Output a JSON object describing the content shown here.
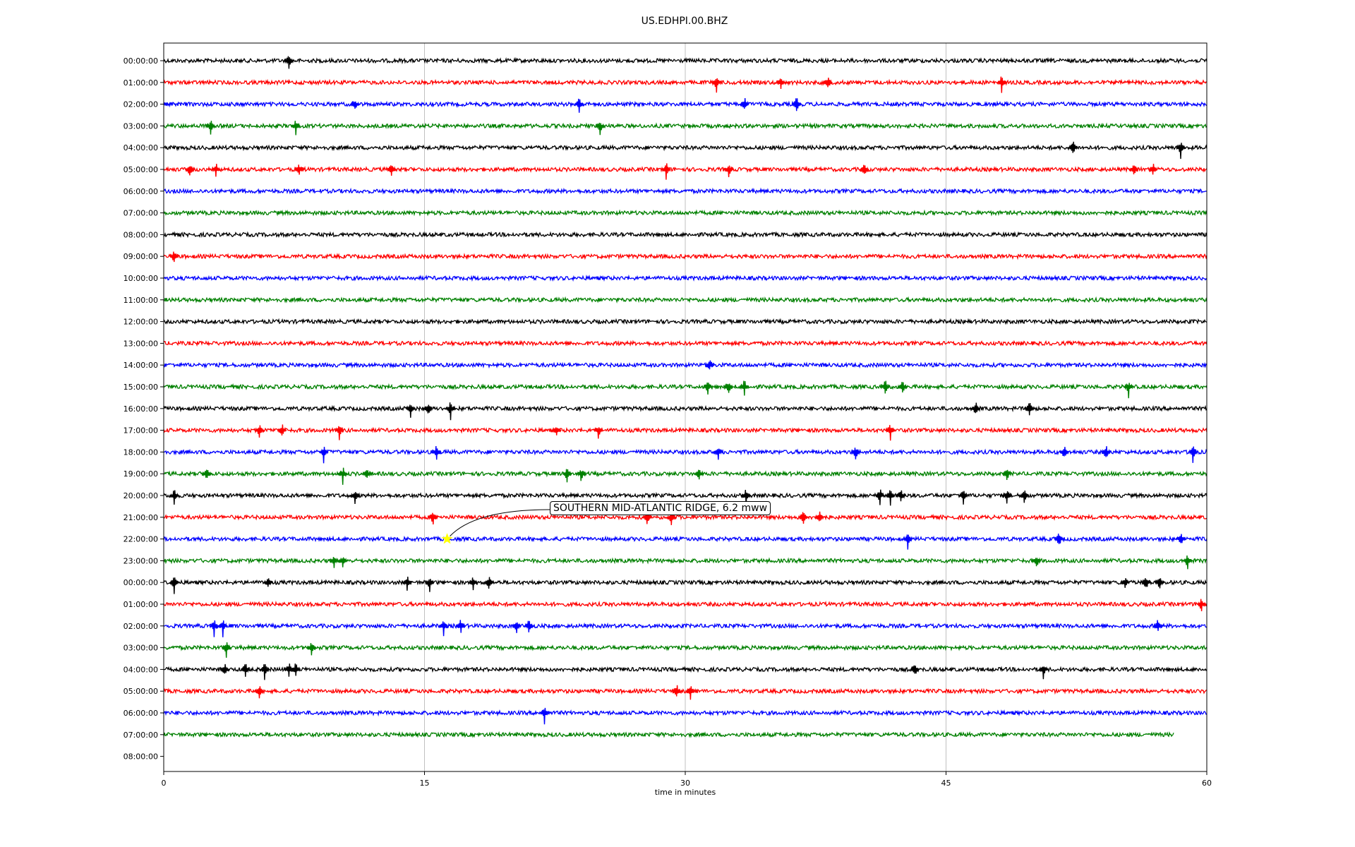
{
  "title": "US.EDHPI.00.BHZ",
  "chart_data": {
    "type": "line",
    "title": "US.EDHPI.00.BHZ",
    "xlabel": "time in minutes",
    "ylabel": "",
    "xlim": [
      0,
      60
    ],
    "x_ticks": [
      "0",
      "15",
      "30",
      "45",
      "60"
    ],
    "grid": "vertical at 15-minute ticks",
    "y_ticks": [
      "00:00:00",
      "01:00:00",
      "02:00:00",
      "03:00:00",
      "04:00:00",
      "05:00:00",
      "06:00:00",
      "07:00:00",
      "08:00:00",
      "09:00:00",
      "10:00:00",
      "11:00:00",
      "12:00:00",
      "13:00:00",
      "14:00:00",
      "15:00:00",
      "16:00:00",
      "17:00:00",
      "18:00:00",
      "19:00:00",
      "20:00:00",
      "21:00:00",
      "22:00:00",
      "23:00:00",
      "00:00:00",
      "01:00:00",
      "02:00:00",
      "03:00:00",
      "04:00:00",
      "05:00:00",
      "06:00:00",
      "07:00:00",
      "08:00:00"
    ],
    "trace_colors": [
      "#000000",
      "#ff0000",
      "#0000ff",
      "#008000"
    ],
    "trace_count": 32,
    "last_trace_end_minute": 58.1,
    "events": [
      {
        "row": 0,
        "minutes": [
          7.2
        ]
      },
      {
        "row": 1,
        "minutes": [
          31.8,
          35.5,
          38.2,
          48.2
        ]
      },
      {
        "row": 2,
        "minutes": [
          11.0,
          23.9,
          33.4,
          36.4
        ]
      },
      {
        "row": 3,
        "minutes": [
          2.7,
          7.6,
          25.1
        ]
      },
      {
        "row": 4,
        "minutes": [
          52.3,
          58.5
        ]
      },
      {
        "row": 5,
        "minutes": [
          1.5,
          3.0,
          7.8,
          13.1,
          28.9,
          32.5,
          40.3,
          55.8,
          56.9
        ]
      },
      {
        "row": 9,
        "minutes": [
          0.6
        ]
      },
      {
        "row": 14,
        "minutes": [
          31.4
        ]
      },
      {
        "row": 15,
        "minutes": [
          31.3,
          32.5,
          33.4,
          41.5,
          42.5,
          55.5
        ]
      },
      {
        "row": 16,
        "minutes": [
          14.2,
          15.2,
          16.5,
          46.7,
          49.8
        ]
      },
      {
        "row": 17,
        "minutes": [
          5.5,
          6.8,
          10.1,
          22.6,
          25.0,
          41.8
        ]
      },
      {
        "row": 18,
        "minutes": [
          9.2,
          15.7,
          31.9,
          39.8,
          51.8,
          54.2,
          59.2
        ]
      },
      {
        "row": 19,
        "minutes": [
          2.5,
          10.3,
          11.7,
          23.2,
          24.0,
          30.8,
          48.5
        ]
      },
      {
        "row": 20,
        "minutes": [
          0.6,
          11.0,
          33.5,
          41.2,
          41.8,
          42.4,
          46.0,
          48.5,
          49.5
        ]
      },
      {
        "row": 21,
        "minutes": [
          15.5,
          27.8,
          29.2,
          36.8,
          37.7
        ]
      },
      {
        "row": 22,
        "minutes": [
          42.8,
          51.5,
          58.5
        ]
      },
      {
        "row": 23,
        "minutes": [
          9.8,
          10.3,
          50.2,
          58.9
        ]
      },
      {
        "row": 24,
        "minutes": [
          0.6,
          6.0,
          14.0,
          15.3,
          17.8,
          18.7,
          55.3,
          56.5,
          57.3
        ]
      },
      {
        "row": 25,
        "minutes": [
          59.7
        ]
      },
      {
        "row": 26,
        "minutes": [
          2.9,
          3.4,
          16.1,
          17.1,
          20.3,
          21.0,
          57.2
        ]
      },
      {
        "row": 27,
        "minutes": [
          3.6,
          8.5
        ]
      },
      {
        "row": 28,
        "minutes": [
          3.5,
          4.7,
          5.8,
          7.2,
          7.6,
          43.2,
          50.6
        ]
      },
      {
        "row": 29,
        "minutes": [
          5.5,
          29.5,
          30.3
        ]
      },
      {
        "row": 30,
        "minutes": [
          21.9
        ]
      }
    ],
    "annotation": {
      "text": "SOUTHERN MID-ATLANTIC RIDGE, 6.2 mww",
      "row": 22,
      "minute": 16.3,
      "marker": "star",
      "marker_color": "#ffff00"
    }
  }
}
